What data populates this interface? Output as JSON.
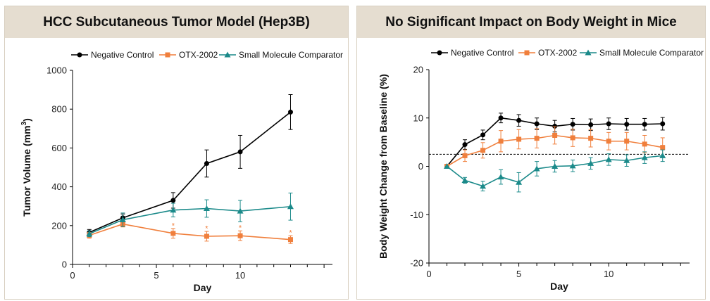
{
  "colors": {
    "negative": "#000000",
    "otx": "#f07f3c",
    "comparator": "#1b8a8a",
    "header_bg": "#e5ddd0"
  },
  "chart_data": [
    {
      "type": "line",
      "title": "HCC Subcutaneous Tumor Model (Hep3B)",
      "xlabel": "Day",
      "ylabel_main": "Tumor Volume (mm",
      "ylabel_sup": "3",
      "ylabel_close": ")",
      "xlim": [
        0,
        15.5
      ],
      "ylim": [
        0,
        1000
      ],
      "xticks": [
        "0",
        "5",
        "10"
      ],
      "xtick_values": [
        0,
        5,
        10
      ],
      "yticks": [
        "0",
        "200",
        "400",
        "600",
        "800",
        "1000"
      ],
      "ytick_values": [
        0,
        200,
        400,
        600,
        800,
        1000
      ],
      "legend": [
        "Negative Control",
        "OTX-2002",
        "Small Molecule Comparator"
      ],
      "series": [
        {
          "name": "Negative Control",
          "marker": "circle",
          "x": [
            1,
            3,
            6,
            8,
            10,
            13
          ],
          "values": [
            165,
            240,
            330,
            520,
            580,
            785
          ],
          "errors": [
            15,
            20,
            40,
            70,
            85,
            90
          ]
        },
        {
          "name": "OTX-2002",
          "marker": "square",
          "x": [
            1,
            3,
            6,
            8,
            10,
            13
          ],
          "values": [
            150,
            208,
            160,
            145,
            148,
            128
          ],
          "errors": [
            15,
            15,
            25,
            25,
            25,
            20
          ]
        },
        {
          "name": "Small Molecule Comparator",
          "marker": "triangle",
          "x": [
            1,
            3,
            6,
            8,
            10,
            13
          ],
          "values": [
            158,
            230,
            280,
            288,
            275,
            298
          ],
          "errors": [
            15,
            35,
            35,
            45,
            55,
            70
          ]
        }
      ],
      "annotations": [
        {
          "text": "*",
          "x": 6,
          "y": 205
        },
        {
          "text": "*",
          "x": 8,
          "y": 190
        },
        {
          "text": "*",
          "x": 10,
          "y": 193
        },
        {
          "text": "*",
          "x": 13,
          "y": 168
        }
      ]
    },
    {
      "type": "line",
      "title": "No Significant Impact on Body Weight in Mice",
      "xlabel": "Day",
      "ylabel": "Body Weight Change from Baseline (%)",
      "xlim": [
        0,
        14.5
      ],
      "ylim": [
        -20,
        20
      ],
      "xticks": [
        "0",
        "5",
        "10"
      ],
      "xtick_values": [
        0,
        5,
        10
      ],
      "yticks": [
        "-20",
        "-10",
        "0",
        "10",
        "20"
      ],
      "ytick_values": [
        -20,
        -10,
        0,
        10,
        20
      ],
      "reference_line": 2.5,
      "legend": [
        "Negative Control",
        "OTX-2002",
        "Small Molecule Comparator"
      ],
      "series": [
        {
          "name": "Negative Control",
          "marker": "circle",
          "x": [
            1,
            2,
            3,
            4,
            5,
            6,
            7,
            8,
            9,
            10,
            11,
            12,
            13
          ],
          "values": [
            0,
            4.5,
            6.5,
            10,
            9.5,
            8.8,
            8.3,
            8.7,
            8.6,
            8.8,
            8.7,
            8.7,
            8.8
          ],
          "errors": [
            0,
            1,
            1,
            1,
            1.2,
            1.2,
            1.2,
            1.2,
            1.2,
            1.2,
            1.2,
            1.2,
            1.3
          ]
        },
        {
          "name": "OTX-2002",
          "marker": "square",
          "x": [
            1,
            2,
            3,
            4,
            5,
            6,
            7,
            8,
            9,
            10,
            11,
            12,
            13
          ],
          "values": [
            0,
            2.2,
            3.3,
            5.2,
            5.6,
            5.8,
            6.4,
            5.9,
            5.8,
            5.2,
            5.2,
            4.6,
            3.9
          ],
          "errors": [
            0,
            1.2,
            1.6,
            2.2,
            2,
            2,
            1.8,
            1.8,
            1.8,
            1.8,
            1.8,
            1.8,
            2
          ]
        },
        {
          "name": "Small Molecule Comparator",
          "marker": "triangle",
          "x": [
            1,
            2,
            3,
            4,
            5,
            6,
            7,
            8,
            9,
            10,
            11,
            12,
            13
          ],
          "values": [
            0,
            -2.9,
            -4.1,
            -2.2,
            -3.3,
            -0.5,
            0,
            0.1,
            0.6,
            1.4,
            1.2,
            1.8,
            2.2
          ],
          "errors": [
            0,
            0.6,
            1,
            1.5,
            2,
            1.5,
            1.2,
            1.2,
            1.2,
            1.2,
            1.2,
            1.2,
            1.2
          ]
        }
      ]
    }
  ]
}
